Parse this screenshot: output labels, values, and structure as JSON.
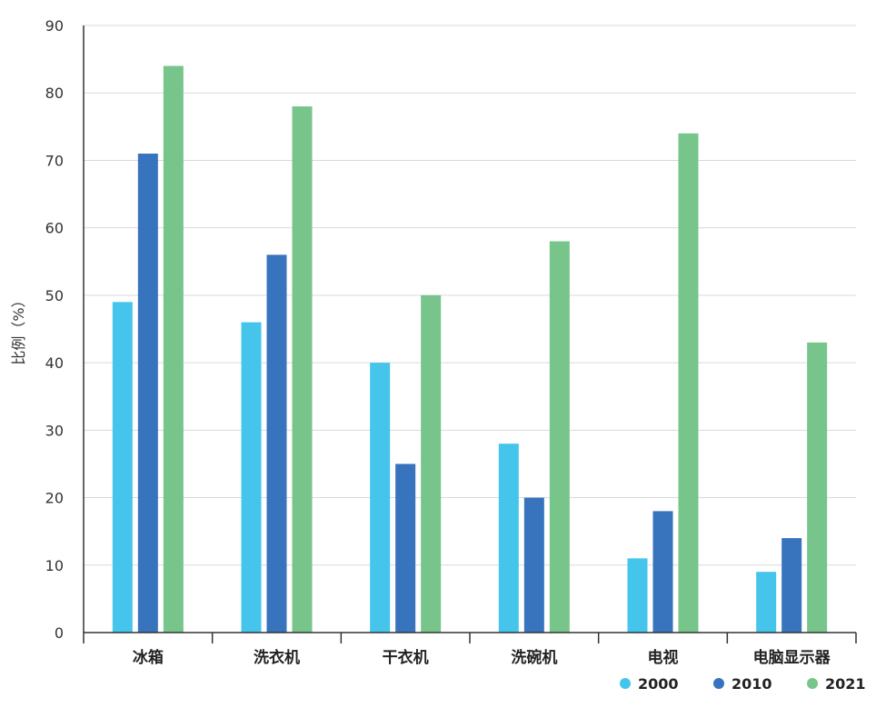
{
  "chart_data": {
    "type": "bar",
    "title": "",
    "xlabel": "",
    "ylabel": "比例（%）",
    "ylim": [
      0,
      90
    ],
    "yticks": [
      0,
      10,
      20,
      30,
      40,
      50,
      60,
      70,
      80,
      90
    ],
    "grid": true,
    "legend_position": "bottom-right",
    "categories": [
      "冰箱",
      "洗衣机",
      "干衣机",
      "洗碗机",
      "电视",
      "电脑显示器"
    ],
    "series": [
      {
        "name": "2000",
        "color": "#45c5ec",
        "values": [
          49,
          46,
          40,
          28,
          11,
          9
        ]
      },
      {
        "name": "2010",
        "color": "#3873bd",
        "values": [
          71,
          56,
          25,
          20,
          18,
          14
        ]
      },
      {
        "name": "2021",
        "color": "#77c58a",
        "values": [
          84,
          78,
          50,
          58,
          74,
          43
        ]
      }
    ]
  }
}
